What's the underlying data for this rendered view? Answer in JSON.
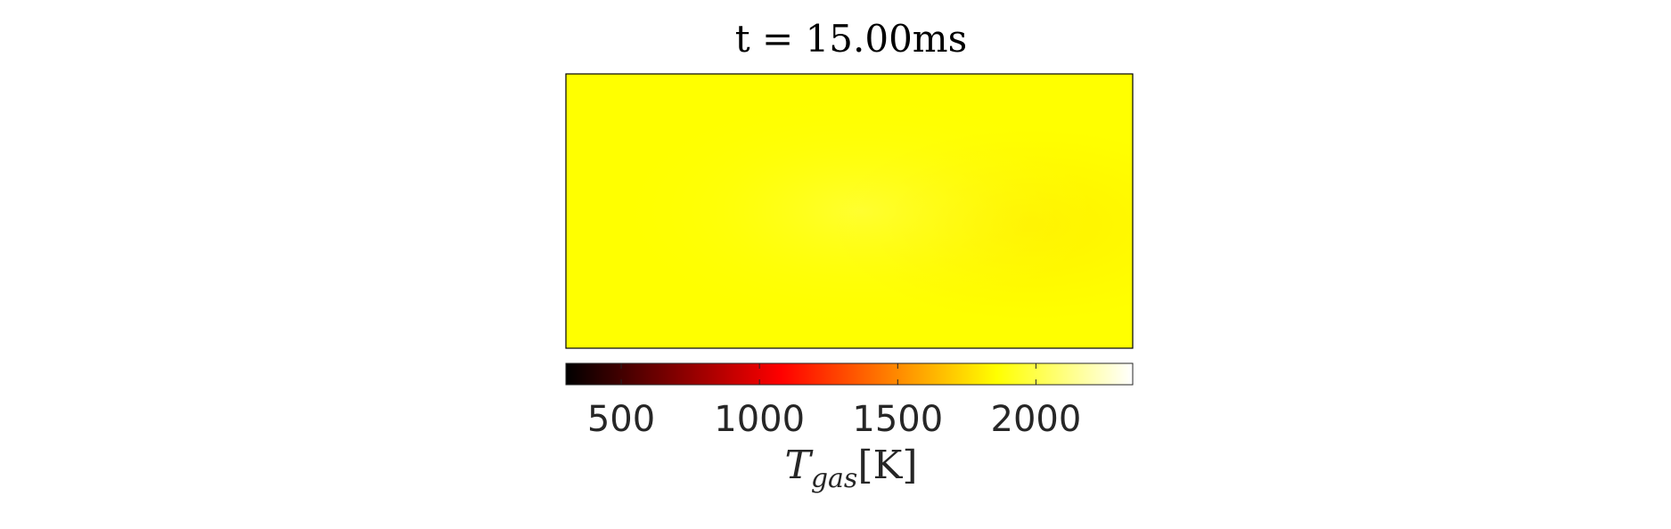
{
  "chart_data": {
    "type": "heatmap",
    "title": "t = 15.00ms",
    "colormap": "hot",
    "colorbar": {
      "orientation": "horizontal",
      "placement": "bottom",
      "range": [
        300,
        2350
      ],
      "ticks": [
        500,
        1000,
        1500,
        2000
      ],
      "tick_labels": [
        "500",
        "1000",
        "1500",
        "2000"
      ],
      "label_main": "T",
      "label_sub": "gas",
      "label_unit": "[K]"
    },
    "field": {
      "description_values": "near-uniform temperature field",
      "min_value": 2000,
      "max_value": 2080,
      "hot_spot_value": 2080,
      "edge_value": 2000
    },
    "colors": {
      "field_base": "#ffff00",
      "field_center": "#ffff3a",
      "field_right": "#fff000",
      "frame": "#000000",
      "tick_text": "#262626"
    }
  }
}
